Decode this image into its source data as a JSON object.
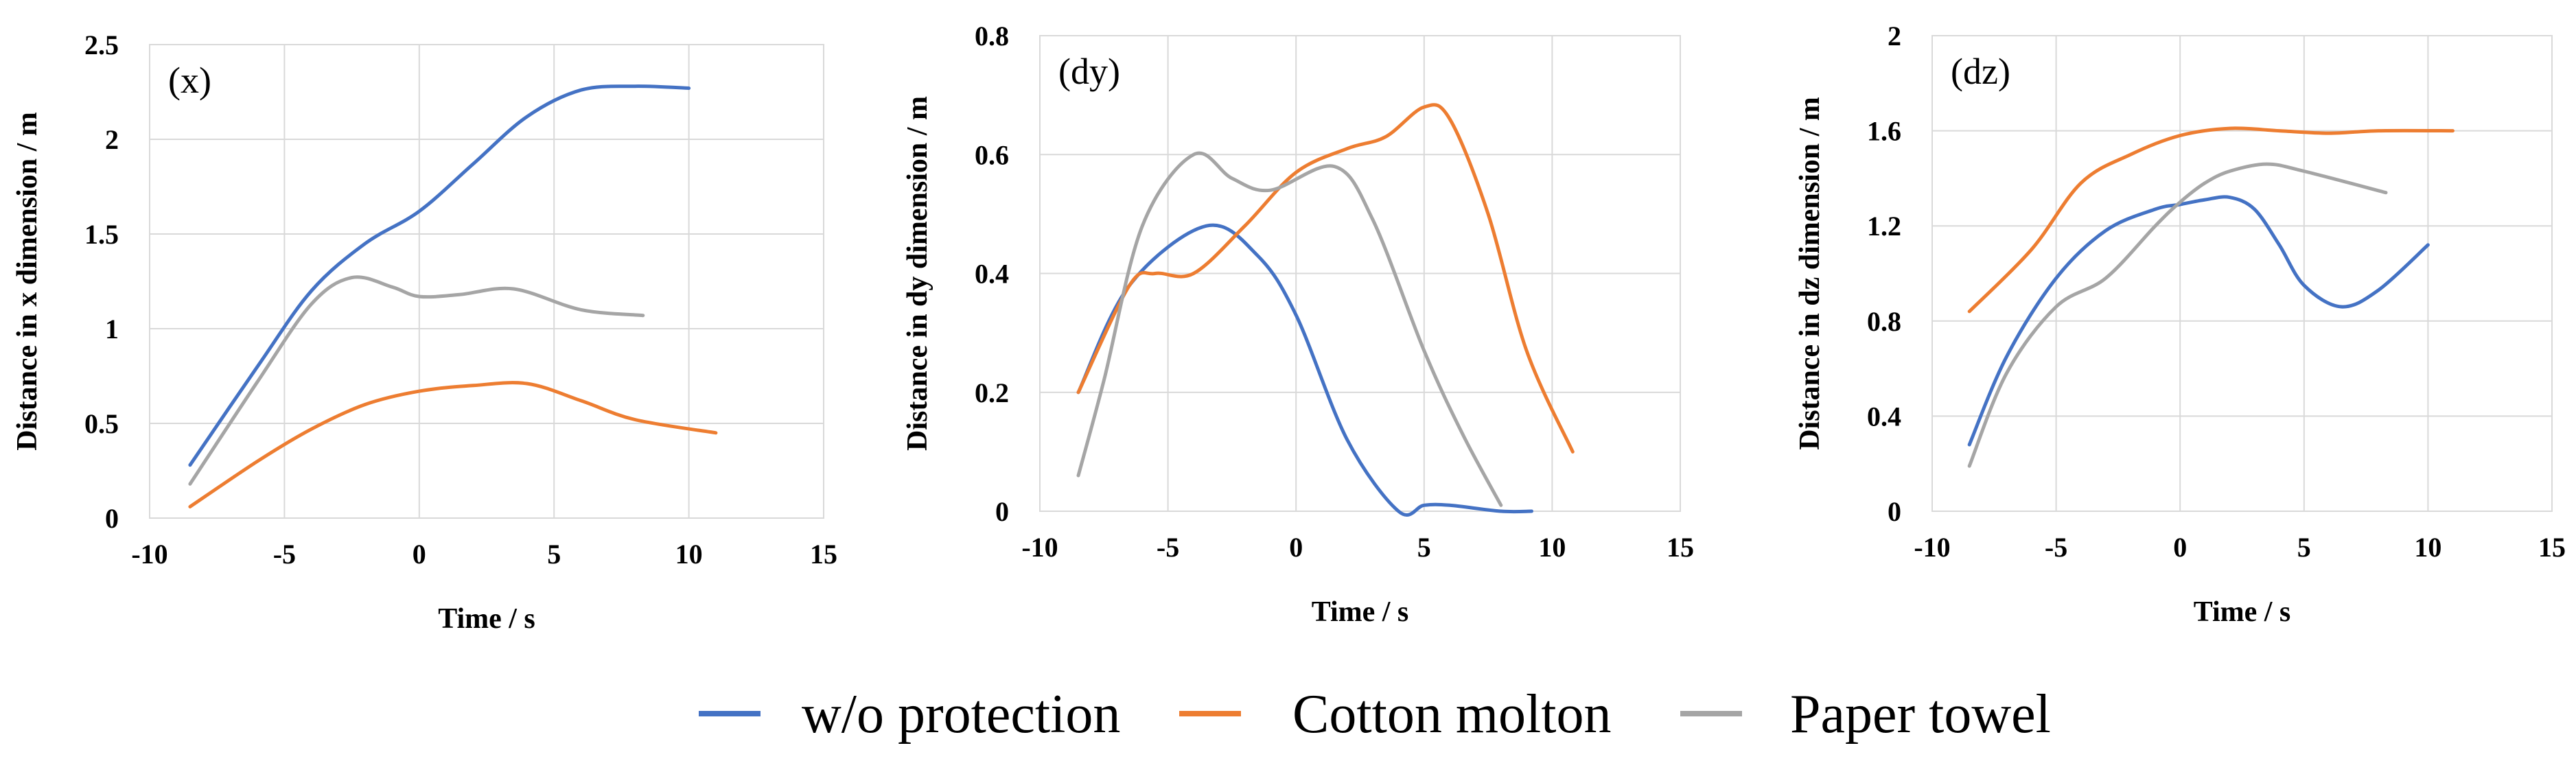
{
  "colors": {
    "w/o protection": "#4472c4",
    "Cotton molton": "#ed7d31",
    "Paper towel": "#a5a5a5"
  },
  "legend": [
    "w/o protection",
    "Cotton molton",
    "Paper towel"
  ],
  "chart_data": [
    {
      "type": "line",
      "panel_label": "(x)",
      "xlabel": "Time / s",
      "ylabel": "Distance in x dimension / m",
      "xlim": [
        -10,
        15
      ],
      "ylim": [
        0,
        2.5
      ],
      "xticks": [
        "-10",
        "-5",
        "0",
        "5",
        "10",
        "15"
      ],
      "yticks": [
        "0",
        "0.5",
        "1",
        "1.5",
        "2",
        "2.5"
      ],
      "series": [
        {
          "name": "w/o protection",
          "x": [
            -8.5,
            -6,
            -4,
            -2,
            0,
            2,
            4,
            6,
            8,
            10
          ],
          "y": [
            0.28,
            0.8,
            1.2,
            1.45,
            1.62,
            1.87,
            2.12,
            2.26,
            2.28,
            2.27
          ]
        },
        {
          "name": "Cotton molton",
          "x": [
            -8.5,
            -6,
            -4,
            -2,
            0,
            2,
            4,
            6,
            8,
            11
          ],
          "y": [
            0.06,
            0.3,
            0.47,
            0.6,
            0.67,
            0.7,
            0.71,
            0.62,
            0.52,
            0.45
          ]
        },
        {
          "name": "Paper towel",
          "x": [
            -8.5,
            -6,
            -4,
            -2.5,
            -1,
            0,
            1.5,
            3.5,
            6,
            8.3
          ],
          "y": [
            0.18,
            0.72,
            1.13,
            1.27,
            1.22,
            1.17,
            1.18,
            1.21,
            1.1,
            1.07
          ]
        }
      ]
    },
    {
      "type": "line",
      "panel_label": "(dy)",
      "xlabel": "Time / s",
      "ylabel": "Distance in dy dimension / m",
      "xlim": [
        -10,
        15
      ],
      "ylim": [
        0,
        0.8
      ],
      "xticks": [
        "-10",
        "-5",
        "0",
        "5",
        "10",
        "15"
      ],
      "yticks": [
        "0",
        "0.2",
        "0.4",
        "0.6",
        "0.8"
      ],
      "series": [
        {
          "name": "w/o protection",
          "x": [
            -8.5,
            -6.5,
            -3.5,
            -1.5,
            0,
            2,
            4,
            5,
            6,
            8,
            9.2
          ],
          "y": [
            0.2,
            0.38,
            0.48,
            0.43,
            0.33,
            0.12,
            0.0,
            0.01,
            0.01,
            0.0,
            0.0
          ]
        },
        {
          "name": "Cotton molton",
          "x": [
            -8.5,
            -6.5,
            -5.5,
            -4,
            -2,
            0,
            2,
            3.5,
            5,
            6,
            7.5,
            9,
            10.8
          ],
          "y": [
            0.2,
            0.38,
            0.4,
            0.4,
            0.48,
            0.57,
            0.61,
            0.63,
            0.68,
            0.66,
            0.5,
            0.27,
            0.1
          ]
        },
        {
          "name": "Paper towel",
          "x": [
            -8.5,
            -7.5,
            -6,
            -4,
            -2.5,
            -1,
            1.5,
            3,
            5,
            6.5,
            8
          ],
          "y": [
            0.06,
            0.22,
            0.48,
            0.6,
            0.56,
            0.54,
            0.58,
            0.49,
            0.27,
            0.13,
            0.01
          ]
        }
      ]
    },
    {
      "type": "line",
      "panel_label": "(dz)",
      "xlabel": "Time / s",
      "ylabel": "Distance in dz dimension / m",
      "xlim": [
        -10,
        15
      ],
      "ylim": [
        0,
        2
      ],
      "xticks": [
        "-10",
        "-5",
        "0",
        "5",
        "10",
        "15"
      ],
      "yticks": [
        "0",
        "0.4",
        "0.8",
        "1.2",
        "1.6",
        "2"
      ],
      "series": [
        {
          "name": "w/o protection",
          "x": [
            -8.5,
            -7,
            -5,
            -3,
            -1,
            0,
            1,
            2,
            3,
            4,
            5,
            6.5,
            8,
            10
          ],
          "y": [
            0.28,
            0.65,
            0.98,
            1.18,
            1.27,
            1.29,
            1.31,
            1.32,
            1.27,
            1.12,
            0.95,
            0.86,
            0.93,
            1.12
          ]
        },
        {
          "name": "Cotton molton",
          "x": [
            -8.5,
            -6,
            -4,
            -2,
            0,
            2,
            4,
            6,
            8,
            11
          ],
          "y": [
            0.84,
            1.1,
            1.38,
            1.5,
            1.58,
            1.61,
            1.6,
            1.59,
            1.6,
            1.6
          ]
        },
        {
          "name": "Paper towel",
          "x": [
            -8.5,
            -7,
            -5,
            -3,
            -1,
            0,
            1,
            2,
            3.5,
            5,
            8.3
          ],
          "y": [
            0.19,
            0.58,
            0.86,
            0.98,
            1.2,
            1.3,
            1.38,
            1.43,
            1.46,
            1.43,
            1.34
          ]
        }
      ]
    }
  ]
}
